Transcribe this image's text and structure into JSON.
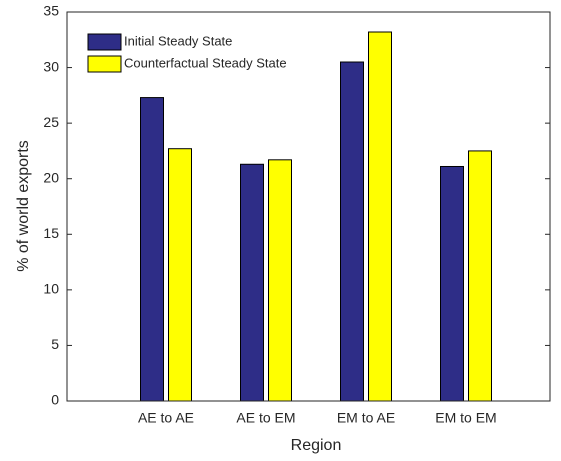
{
  "chart_data": {
    "type": "bar",
    "xlabel": "Region",
    "ylabel": "% of world exports",
    "categories": [
      "AE to AE",
      "AE to EM",
      "EM to AE",
      "EM to EM"
    ],
    "series": [
      {
        "name": "Initial Steady State",
        "color": "#2e2d87",
        "values": [
          27.3,
          21.3,
          30.5,
          21.1
        ]
      },
      {
        "name": "Counterfactual Steady State",
        "color": "#ffff00",
        "values": [
          22.7,
          21.7,
          33.2,
          22.5
        ]
      }
    ],
    "ylim": [
      0,
      35
    ],
    "yticks": [
      0,
      5,
      10,
      15,
      20,
      25,
      30,
      35
    ],
    "grid": false,
    "legend": "top-left"
  }
}
